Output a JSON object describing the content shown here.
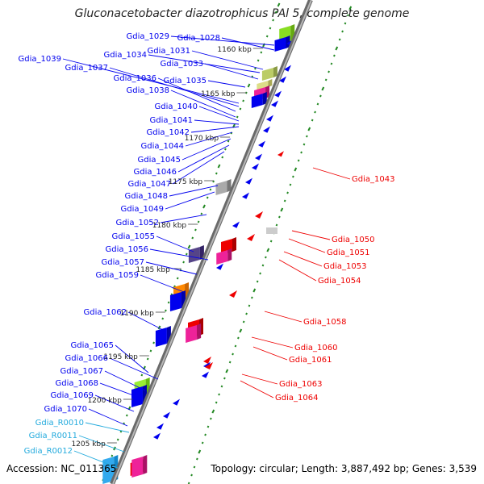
{
  "title": "Gluconacetobacter diazotrophicus PAl 5, complete genome",
  "footer": {
    "accession": "Accession: NC_011365",
    "summary": "Topology: circular; Length: 3,887,492 bp; Genes: 3,539"
  },
  "colors": {
    "forward_gene": "#0000ee",
    "reverse_gene": "#ee0000",
    "rna_gene": "#22aadd",
    "backbone": "#888888",
    "tick": "#228822"
  },
  "ruler": [
    "1160 kbp",
    "1165 kbp",
    "1170 kbp",
    "1175 kbp",
    "1180 kbp",
    "1185 kbp",
    "1190 kbp",
    "1195 kbp",
    "1200 kbp",
    "1205 kbp"
  ],
  "forward_labels": [
    "Gdia_1029",
    "Gdia_1028",
    "Gdia_1031",
    "Gdia_1034",
    "Gdia_1033",
    "Gdia_1039",
    "Gdia_1037",
    "Gdia_1036",
    "Gdia_1035",
    "Gdia_1038",
    "Gdia_1040",
    "Gdia_1041",
    "Gdia_1042",
    "Gdia_1044",
    "Gdia_1045",
    "Gdia_1046",
    "Gdia_1047",
    "Gdia_1048",
    "Gdia_1049",
    "Gdia_1052",
    "Gdia_1055",
    "Gdia_1056",
    "Gdia_1057",
    "Gdia_1059",
    "Gdia_1062",
    "Gdia_1065",
    "Gdia_1066",
    "Gdia_1067",
    "Gdia_1068",
    "Gdia_1069",
    "Gdia_1070"
  ],
  "rna_labels": [
    "Gdia_R0010",
    "Gdia_R0011",
    "Gdia_R0012"
  ],
  "reverse_labels": [
    "Gdia_1043",
    "Gdia_1050",
    "Gdia_1051",
    "Gdia_1053",
    "Gdia_1054",
    "Gdia_1058",
    "Gdia_1060",
    "Gdia_1061",
    "Gdia_1063",
    "Gdia_1064"
  ]
}
